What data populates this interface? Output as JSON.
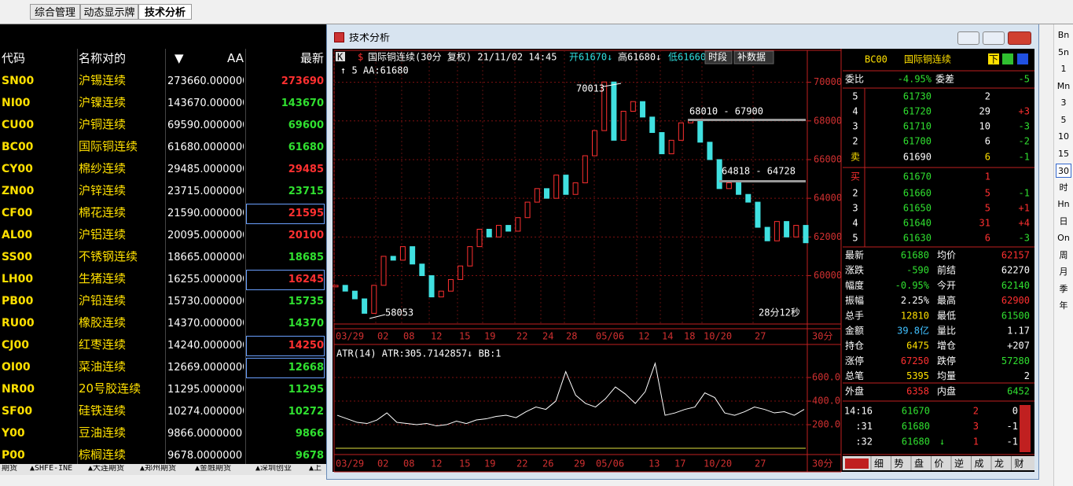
{
  "tabs": [
    "综合管理",
    "动态显示牌",
    "技术分析"
  ],
  "toolbar": [
    "Bn",
    "5n",
    "1",
    "Mn",
    "3",
    "5",
    "10",
    "15",
    "30",
    "时",
    "Hn",
    "日",
    "On",
    "周",
    "月",
    "季",
    "年"
  ],
  "quote_table": {
    "headers": [
      "代码",
      "名称对的",
      "▼",
      "AA",
      "最新"
    ],
    "rows": [
      {
        "code": "SN00",
        "name": "沪锡连续",
        "aa": "273660.0000000",
        "last": "273690",
        "color": "#ff3030"
      },
      {
        "code": "NI00",
        "name": "沪镍连续",
        "aa": "143670.0000000",
        "last": "143670",
        "color": "#30e030"
      },
      {
        "code": "CU00",
        "name": "沪铜连续",
        "aa": "69590.0000000",
        "last": "69600",
        "color": "#30e030"
      },
      {
        "code": "BC00",
        "name": "国际铜连续",
        "aa": "61680.0000000",
        "last": "61680",
        "color": "#30e030"
      },
      {
        "code": "CY00",
        "name": "棉纱连续",
        "aa": "29485.0000000",
        "last": "29485",
        "color": "#ff3030"
      },
      {
        "code": "ZN00",
        "name": "沪锌连续",
        "aa": "23715.0000000",
        "last": "23715",
        "color": "#30e030"
      },
      {
        "code": "CF00",
        "name": "棉花连续",
        "aa": "21590.0000000",
        "last": "21595",
        "color": "#ff3030"
      },
      {
        "code": "AL00",
        "name": "沪铝连续",
        "aa": "20095.0000000",
        "last": "20100",
        "color": "#ff3030"
      },
      {
        "code": "SS00",
        "name": "不锈钢连续",
        "aa": "18665.0000000",
        "last": "18685",
        "color": "#30e030"
      },
      {
        "code": "LH00",
        "name": "生猪连续",
        "aa": "16255.0000000",
        "last": "16245",
        "color": "#ff3030"
      },
      {
        "code": "PB00",
        "name": "沪铅连续",
        "aa": "15730.0000000",
        "last": "15735",
        "color": "#30e030"
      },
      {
        "code": "RU00",
        "name": "橡胶连续",
        "aa": "14370.0000000",
        "last": "14370",
        "color": "#30e030"
      },
      {
        "code": "CJ00",
        "name": "红枣连续",
        "aa": "14240.0000000",
        "last": "14250",
        "color": "#ff3030"
      },
      {
        "code": "OI00",
        "name": "菜油连续",
        "aa": "12669.0000000",
        "last": "12668",
        "color": "#30e030"
      },
      {
        "code": "NR00",
        "name": "20号胶连续",
        "aa": "11295.0000000",
        "last": "11295",
        "color": "#30e030"
      },
      {
        "code": "SF00",
        "name": "硅铁连续",
        "aa": "10274.0000000",
        "last": "10272",
        "color": "#30e030"
      },
      {
        "code": "Y00",
        "name": "豆油连续",
        "aa": "9866.0000000",
        "last": "9866",
        "color": "#30e030"
      },
      {
        "code": "P00",
        "name": "棕榈连续",
        "aa": "9678.0000000",
        "last": "9678",
        "color": "#30e030"
      }
    ]
  },
  "market_tabs": [
    "期货",
    "▲SHFE-INE",
    "▲大连期货",
    "▲郑州期货",
    "▲金融期货",
    "▲深圳创业",
    "▲上"
  ],
  "window": {
    "title": "技术分析"
  },
  "main_chart": {
    "icons": [
      "K",
      "$"
    ],
    "symbol": "国际铜连续(30分 复权) 21/11/02 14:45",
    "open": "开61670↓",
    "high": "高61680↓",
    "low": "低61660",
    "buttons": [
      "时段",
      "补数据"
    ],
    "line2": "↑ 5 AA:61680",
    "ylim": [
      57500,
      71650
    ],
    "yticks": [
      60000,
      62000,
      64000,
      66000,
      68000,
      70000
    ],
    "grid": true,
    "values": [
      59500,
      59200,
      58800,
      58053,
      59500,
      61000,
      60800,
      61500,
      60600,
      60000,
      58900,
      59200,
      59800,
      60500,
      61500,
      62400,
      62000,
      62600,
      62300,
      63000,
      63800,
      64500,
      64000,
      65200,
      64200,
      64800,
      66200,
      67500,
      70013,
      67000,
      68500,
      69000,
      68200,
      67400,
      66300,
      67000,
      67900,
      68010,
      66900,
      66000,
      64500,
      64800,
      64200,
      63800,
      62500,
      61800,
      62800,
      62000,
      62600,
      61700
    ],
    "annotations": [
      "70013",
      "68010 - 67900",
      "64818 - 64728",
      "58053",
      "28分12秒"
    ],
    "xlabels": [
      "03/29",
      "02",
      "08",
      "12",
      "15",
      "19",
      "22",
      "24",
      "28",
      "05/06",
      "12",
      "14",
      "18",
      "10/20",
      "27"
    ],
    "period": "30分"
  },
  "atr_chart": {
    "label": "ATR(14) ATR:305.7142857↓ BB:1",
    "ylim": [
      -33,
      867
    ],
    "yticks": [
      {
        "value": 200,
        "label": "200.0"
      },
      {
        "value": 400,
        "label": "400.0"
      },
      {
        "value": 600,
        "label": "600.0"
      }
    ],
    "values": [
      280,
      250,
      220,
      210,
      240,
      300,
      220,
      210,
      200,
      210,
      190,
      200,
      230,
      210,
      240,
      250,
      270,
      280,
      260,
      310,
      350,
      330,
      400,
      650,
      450,
      380,
      350,
      420,
      520,
      460,
      380,
      480,
      720,
      280,
      300,
      330,
      350,
      470,
      430,
      300,
      280,
      310,
      350,
      330,
      300,
      310,
      280,
      330
    ],
    "xlabels": [
      "03/29",
      "02",
      "08",
      "12",
      "15",
      "19",
      "22",
      "26",
      "29",
      "05/06",
      "13",
      "17",
      "10/20",
      "27"
    ],
    "period": "30分"
  },
  "quote_panel": {
    "code": "BC00",
    "name": "国际铜连续",
    "flag": "下",
    "ratio": [
      "委比",
      "-4.95%",
      "委差",
      "-5"
    ],
    "asks": [
      [
        "5",
        "61730",
        "2"
      ],
      [
        "4",
        "61720",
        "29",
        "+3"
      ],
      [
        "3",
        "61710",
        "10",
        "-3"
      ],
      [
        "2",
        "61700",
        "6",
        "-2"
      ],
      [
        "卖",
        "61690",
        "6",
        "-1"
      ]
    ],
    "bids": [
      [
        "买",
        "61670",
        "1"
      ],
      [
        "2",
        "61660",
        "5",
        "-1"
      ],
      [
        "3",
        "61650",
        "5",
        "+1"
      ],
      [
        "4",
        "61640",
        "31",
        "+4"
      ],
      [
        "5",
        "61630",
        "6",
        "-3"
      ]
    ],
    "stats": [
      [
        "最新",
        "61680",
        "均价",
        "62157"
      ],
      [
        "涨跌",
        "-590",
        "前结",
        "62270"
      ],
      [
        "幅度",
        "-0.95%",
        "今开",
        "62140"
      ],
      [
        "振幅",
        "2.25%",
        "最高",
        "62900"
      ],
      [
        "总手",
        "12810",
        "最低",
        "61500"
      ],
      [
        "金额",
        "39.8亿",
        "量比",
        "1.17"
      ],
      [
        "持仓",
        "6475",
        "增仓",
        "+207"
      ],
      [
        "涨停",
        "67250",
        "跌停",
        "57280"
      ],
      [
        "总笔",
        "5395",
        "均量",
        "2"
      ],
      [
        "外盘",
        "6358",
        "内盘",
        "6452"
      ]
    ],
    "ticks": [
      [
        "14:16",
        "61670",
        "2",
        "0"
      ],
      [
        ":31",
        "61680",
        "3",
        "-1"
      ],
      [
        ":32",
        "61680",
        "↓",
        "1",
        "-1"
      ]
    ],
    "tabs": [
      "细",
      "势",
      "盘",
      "价",
      "逆",
      "成",
      "龙",
      "财"
    ]
  }
}
